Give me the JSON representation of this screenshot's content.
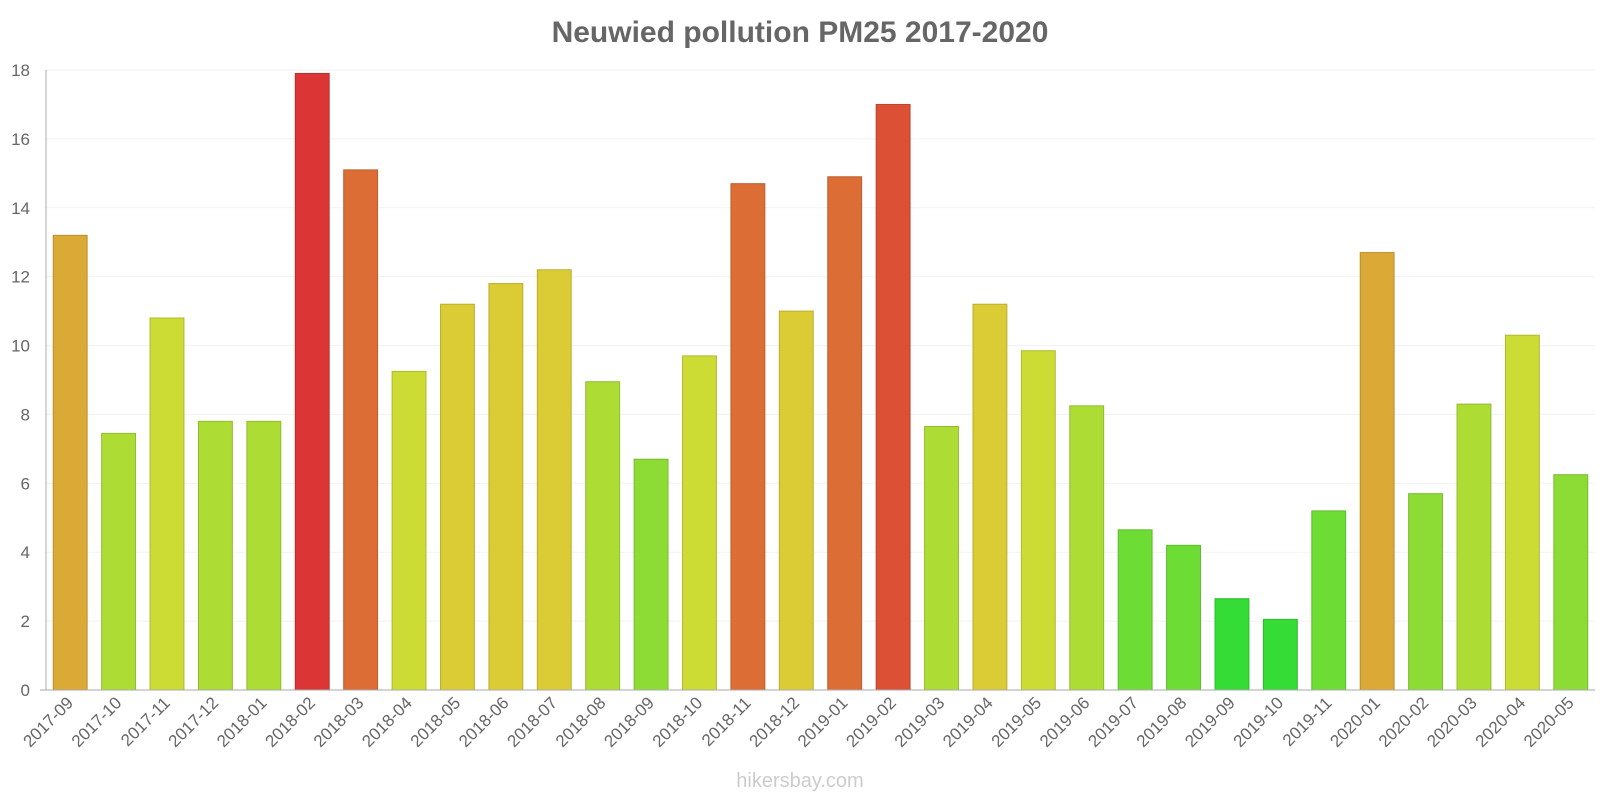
{
  "chart_data": {
    "type": "bar",
    "title": "Neuwied pollution PM25 2017-2020",
    "xlabel": "",
    "ylabel": "",
    "ylim": [
      0,
      18
    ],
    "yticks": [
      0,
      2,
      4,
      6,
      8,
      10,
      12,
      14,
      16,
      18
    ],
    "grid": true,
    "categories": [
      "2017-09",
      "2017-10",
      "2017-11",
      "2017-12",
      "2018-01",
      "2018-02",
      "2018-03",
      "2018-04",
      "2018-05",
      "2018-06",
      "2018-07",
      "2018-08",
      "2018-09",
      "2018-10",
      "2018-11",
      "2018-12",
      "2019-01",
      "2019-02",
      "2019-03",
      "2019-04",
      "2019-05",
      "2019-06",
      "2019-07",
      "2019-08",
      "2019-09",
      "2019-10",
      "2019-11",
      "2020-01",
      "2020-02",
      "2020-03",
      "2020-04",
      "2020-05"
    ],
    "values": [
      13.2,
      7.45,
      10.8,
      7.8,
      7.8,
      17.9,
      15.1,
      9.25,
      11.2,
      11.8,
      12.2,
      8.95,
      6.7,
      9.7,
      14.7,
      11.0,
      14.9,
      17.0,
      7.65,
      11.2,
      9.85,
      8.25,
      4.65,
      4.2,
      2.65,
      2.05,
      5.2,
      12.7,
      5.7,
      8.3,
      10.3,
      6.25
    ],
    "colors": [
      "#dba935",
      "#addc35",
      "#cddc35",
      "#addc35",
      "#addc35",
      "#dc3535",
      "#dc6e35",
      "#cddc35",
      "#dbcc35",
      "#dbcc35",
      "#dbcc35",
      "#addc35",
      "#8ddc35",
      "#cddc35",
      "#dc6e35",
      "#dbcc35",
      "#dc6e35",
      "#dc5035",
      "#addc35",
      "#dbcc35",
      "#cddc35",
      "#addc35",
      "#6ddc35",
      "#6ddc35",
      "#35dc35",
      "#35dc35",
      "#6ddc35",
      "#dba935",
      "#8ddc35",
      "#addc35",
      "#cddc35",
      "#8ddc35"
    ]
  },
  "watermark": "hikersbay.com"
}
